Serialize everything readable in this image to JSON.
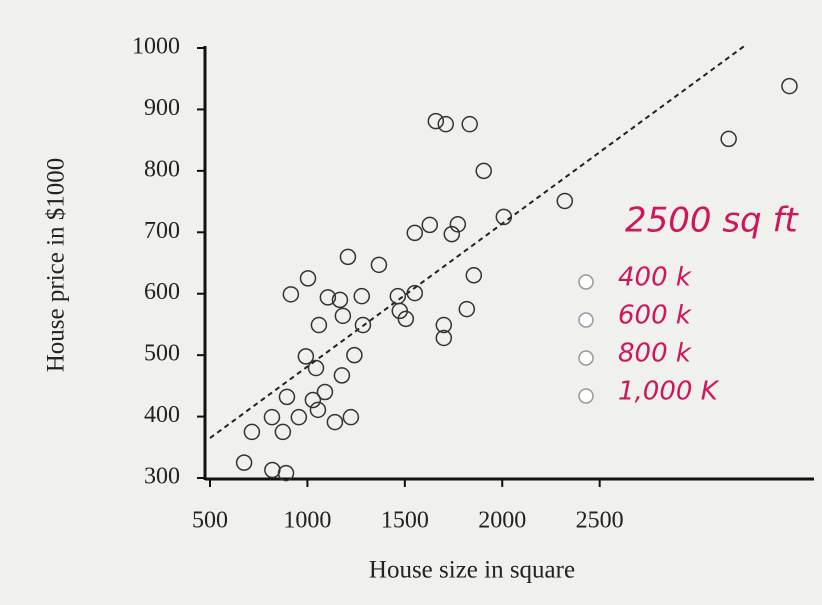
{
  "chart_data": {
    "type": "scatter",
    "xlabel": "House size in square",
    "ylabel": "House price in $1000",
    "x": [
      675,
      820,
      890,
      715,
      818,
      874,
      895,
      956,
      1028,
      1054,
      1090,
      1141,
      1223,
      1177,
      1241,
      992,
      1044,
      915,
      1003,
      1105,
      1167,
      1182,
      1059,
      1285,
      1279,
      1208,
      1367,
      1464,
      1551,
      1474,
      1505,
      1700,
      1700,
      1818,
      1854,
      1551,
      1628,
      1741,
      1772,
      1659,
      1710,
      1833,
      1905,
      2008,
      2321,
      3162,
      3474
    ],
    "values": [
      325,
      313,
      308,
      375,
      399,
      375,
      432,
      399,
      427,
      411,
      440,
      391,
      399,
      467,
      500,
      498,
      479,
      599,
      625,
      594,
      590,
      564,
      549,
      549,
      596,
      660,
      647,
      596,
      601,
      572,
      559,
      549,
      528,
      575,
      630,
      699,
      712,
      697,
      713,
      881,
      876,
      876,
      800,
      725,
      751,
      852,
      938
    ],
    "color": "#333333",
    "trend_line": {
      "x": [
        500,
        3250
      ],
      "y": [
        365,
        1005
      ]
    },
    "xlim": [
      500,
      3600
    ],
    "ylim": [
      300,
      1000
    ],
    "xticks": [
      500,
      1000,
      1500,
      2000,
      2500
    ],
    "yticks": [
      300,
      400,
      500,
      600,
      700,
      800,
      900,
      1000
    ]
  },
  "annotation": "2500 sq ft",
  "options": [
    "400 k",
    "600 k",
    "800 k",
    "1,000 K"
  ]
}
